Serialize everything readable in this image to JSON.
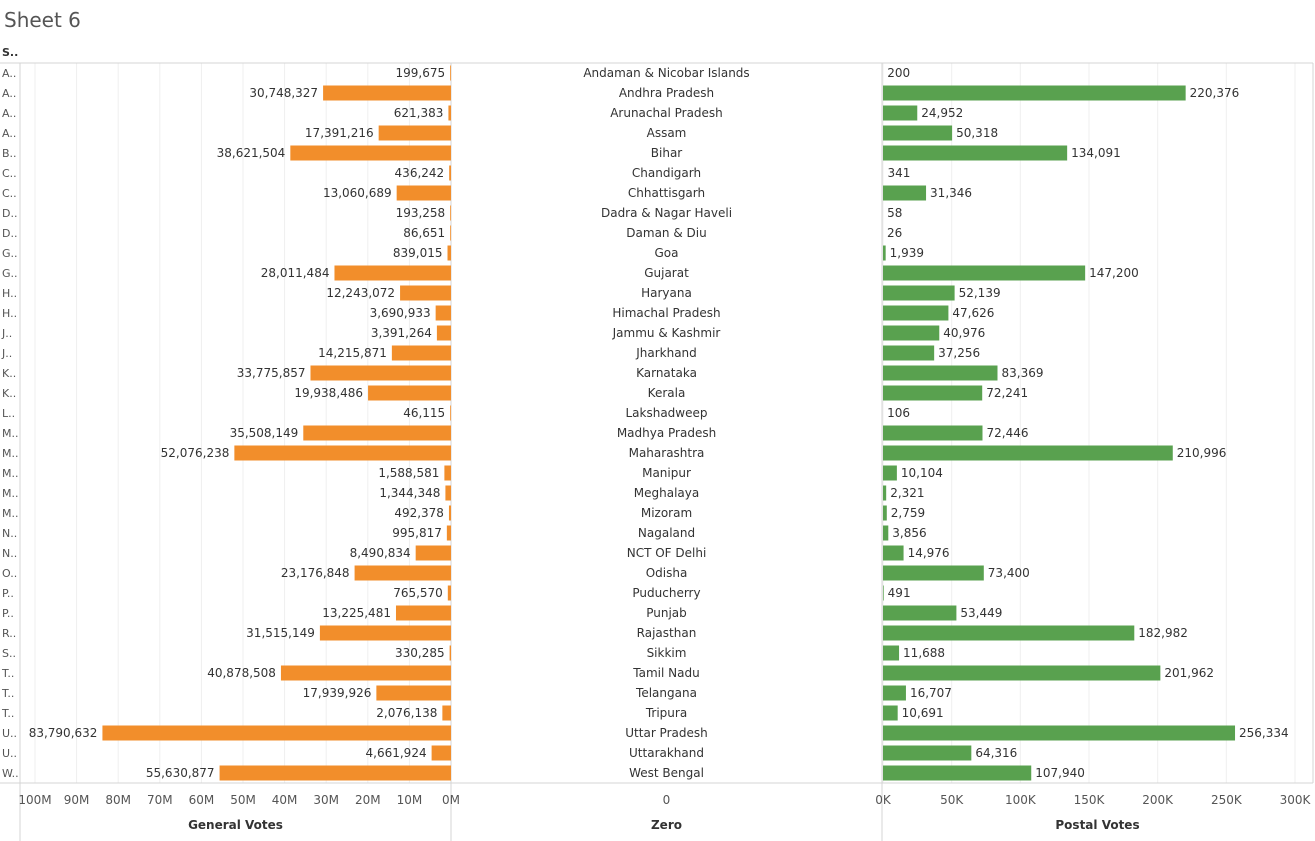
{
  "sheet_title": "Sheet 6",
  "row_header": "S..",
  "chart_data": {
    "type": "bar",
    "layout": "three-pane diverging horizontal bar",
    "categories": [
      "Andaman & Nicobar Islands",
      "Andhra Pradesh",
      "Arunachal Pradesh",
      "Assam",
      "Bihar",
      "Chandigarh",
      "Chhattisgarh",
      "Dadra & Nagar Haveli",
      "Daman & Diu",
      "Goa",
      "Gujarat",
      "Haryana",
      "Himachal Pradesh",
      "Jammu & Kashmir",
      "Jharkhand",
      "Karnataka",
      "Kerala",
      "Lakshadweep",
      "Madhya Pradesh",
      "Maharashtra",
      "Manipur",
      "Meghalaya",
      "Mizoram",
      "Nagaland",
      "NCT OF Delhi",
      "Odisha",
      "Puducherry",
      "Punjab",
      "Rajasthan",
      "Sikkim",
      "Tamil Nadu",
      "Telangana",
      "Tripura",
      "Uttar Pradesh",
      "Uttarakhand",
      "West Bengal"
    ],
    "abbreviations": [
      "A..",
      "A..",
      "A..",
      "A..",
      "B..",
      "C..",
      "C..",
      "D..",
      "D..",
      "G..",
      "G..",
      "H..",
      "H..",
      "J..",
      "J..",
      "K..",
      "K..",
      "L..",
      "M..",
      "M..",
      "M..",
      "M..",
      "M..",
      "N..",
      "N..",
      "O..",
      "P..",
      "P..",
      "R..",
      "S..",
      "T..",
      "T..",
      "T..",
      "U..",
      "U..",
      "W.."
    ],
    "series": [
      {
        "name": "General Votes",
        "color": "#f28e2b",
        "values": [
          199675,
          30748327,
          621383,
          17391216,
          38621504,
          436242,
          13060689,
          193258,
          86651,
          839015,
          28011484,
          12243072,
          3690933,
          3391264,
          14215871,
          33775857,
          19938486,
          46115,
          35508149,
          52076238,
          1588581,
          1344348,
          492378,
          995817,
          8490834,
          23176848,
          765570,
          13225481,
          31515149,
          330285,
          40878508,
          17939926,
          2076138,
          83790632,
          4661924,
          55630877
        ],
        "labels": [
          "199,675",
          "30,748,327",
          "621,383",
          "17,391,216",
          "38,621,504",
          "436,242",
          "13,060,689",
          "193,258",
          "86,651",
          "839,015",
          "28,011,484",
          "12,243,072",
          "3,690,933",
          "3,391,264",
          "14,215,871",
          "33,775,857",
          "19,938,486",
          "46,115",
          "35,508,149",
          "52,076,238",
          "1,588,581",
          "1,344,348",
          "492,378",
          "995,817",
          "8,490,834",
          "23,176,848",
          "765,570",
          "13,225,481",
          "31,515,149",
          "330,285",
          "40,878,508",
          "17,939,926",
          "2,076,138",
          "83,790,632",
          "4,661,924",
          "55,630,877"
        ],
        "axis": {
          "title": "General Votes",
          "range": [
            0,
            100000000
          ],
          "reversed": true,
          "ticks": [
            0,
            10000000,
            20000000,
            30000000,
            40000000,
            50000000,
            60000000,
            70000000,
            80000000,
            90000000,
            100000000
          ],
          "tick_labels": [
            "0M",
            "10M",
            "20M",
            "30M",
            "40M",
            "50M",
            "60M",
            "70M",
            "80M",
            "90M",
            "100M"
          ]
        }
      },
      {
        "name": "Postal Votes",
        "color": "#59a14f",
        "values": [
          200,
          220376,
          24952,
          50318,
          134091,
          341,
          31346,
          58,
          26,
          1939,
          147200,
          52139,
          47626,
          40976,
          37256,
          83369,
          72241,
          106,
          72446,
          210996,
          10104,
          2321,
          2759,
          3856,
          14976,
          73400,
          491,
          53449,
          182982,
          11688,
          201962,
          16707,
          10691,
          256334,
          64316,
          107940
        ],
        "labels": [
          "200",
          "220,376",
          "24,952",
          "50,318",
          "134,091",
          "341",
          "31,346",
          "58",
          "26",
          "1,939",
          "147,200",
          "52,139",
          "47,626",
          "40,976",
          "37,256",
          "83,369",
          "72,241",
          "106",
          "72,446",
          "210,996",
          "10,104",
          "2,321",
          "2,759",
          "3,856",
          "14,976",
          "73,400",
          "491",
          "53,449",
          "182,982",
          "11,688",
          "201,962",
          "16,707",
          "10,691",
          "256,334",
          "64,316",
          "107,940"
        ],
        "axis": {
          "title": "Postal Votes",
          "range": [
            0,
            300000
          ],
          "reversed": false,
          "ticks": [
            0,
            50000,
            100000,
            150000,
            200000,
            250000,
            300000
          ],
          "tick_labels": [
            "0K",
            "50K",
            "100K",
            "150K",
            "200K",
            "250K",
            "300K"
          ]
        }
      }
    ],
    "middle_axis": {
      "title": "Zero",
      "tick_label": "0"
    },
    "grid": true
  }
}
